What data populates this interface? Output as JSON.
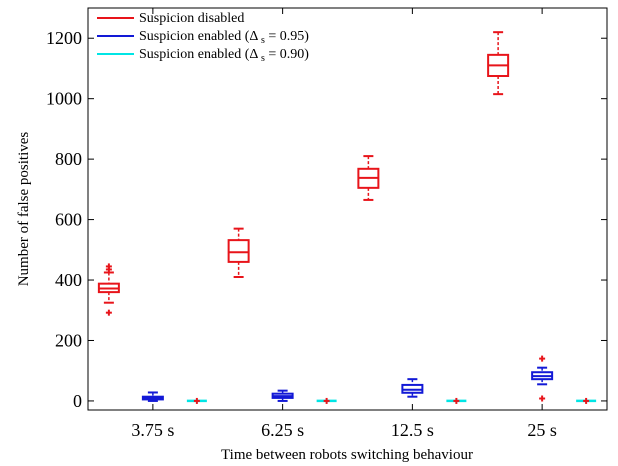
{
  "chart_data": {
    "type": "boxplot",
    "xlabel": "Time between robots switching behaviour",
    "ylabel": "Number of false positives",
    "categories": [
      "3.75 s",
      "6.25 s",
      "12.5 s",
      "25 s"
    ],
    "ylim": [
      -30,
      1300
    ],
    "yticks": [
      0,
      200,
      400,
      600,
      800,
      1000,
      1200
    ],
    "grid": false,
    "legend_position": "top-left",
    "series": [
      {
        "name": "Suspicion disabled",
        "color": "#e8141a",
        "legend_suffix": "",
        "boxes": [
          {
            "whisker_low": 325,
            "q1": 360,
            "median": 372,
            "q3": 388,
            "whisker_high": 425,
            "outliers": [
              292,
              435,
              445
            ]
          },
          {
            "whisker_low": 410,
            "q1": 460,
            "median": 492,
            "q3": 532,
            "whisker_high": 570,
            "outliers": []
          },
          {
            "whisker_low": 665,
            "q1": 705,
            "median": 738,
            "q3": 768,
            "whisker_high": 810,
            "outliers": []
          },
          {
            "whisker_low": 1015,
            "q1": 1075,
            "median": 1110,
            "q3": 1145,
            "whisker_high": 1220,
            "outliers": []
          }
        ]
      },
      {
        "name": "Suspicion enabled",
        "color": "#1219d6",
        "legend_suffix": "0.95",
        "boxes": [
          {
            "whisker_low": 0,
            "q1": 5,
            "median": 9,
            "q3": 14,
            "whisker_high": 28,
            "outliers": []
          },
          {
            "whisker_low": 0,
            "q1": 10,
            "median": 16,
            "q3": 24,
            "whisker_high": 34,
            "outliers": []
          },
          {
            "whisker_low": 14,
            "q1": 27,
            "median": 37,
            "q3": 53,
            "whisker_high": 72,
            "outliers": []
          },
          {
            "whisker_low": 55,
            "q1": 72,
            "median": 82,
            "q3": 95,
            "whisker_high": 110,
            "outliers": [
              8,
              140
            ]
          }
        ]
      },
      {
        "name": "Suspicion enabled",
        "color": "#00e5e5",
        "legend_suffix": "0.90",
        "boxes": [
          {
            "whisker_low": 0,
            "q1": 0,
            "median": 0,
            "q3": 0,
            "whisker_high": 0,
            "outliers": [
              0
            ]
          },
          {
            "whisker_low": 0,
            "q1": 0,
            "median": 0,
            "q3": 0,
            "whisker_high": 0,
            "outliers": [
              0
            ]
          },
          {
            "whisker_low": 0,
            "q1": 0,
            "median": 0,
            "q3": 0,
            "whisker_high": 0,
            "outliers": [
              0
            ]
          },
          {
            "whisker_low": 0,
            "q1": 0,
            "median": 0,
            "q3": 0,
            "whisker_high": 0,
            "outliers": [
              0
            ]
          }
        ]
      }
    ]
  }
}
